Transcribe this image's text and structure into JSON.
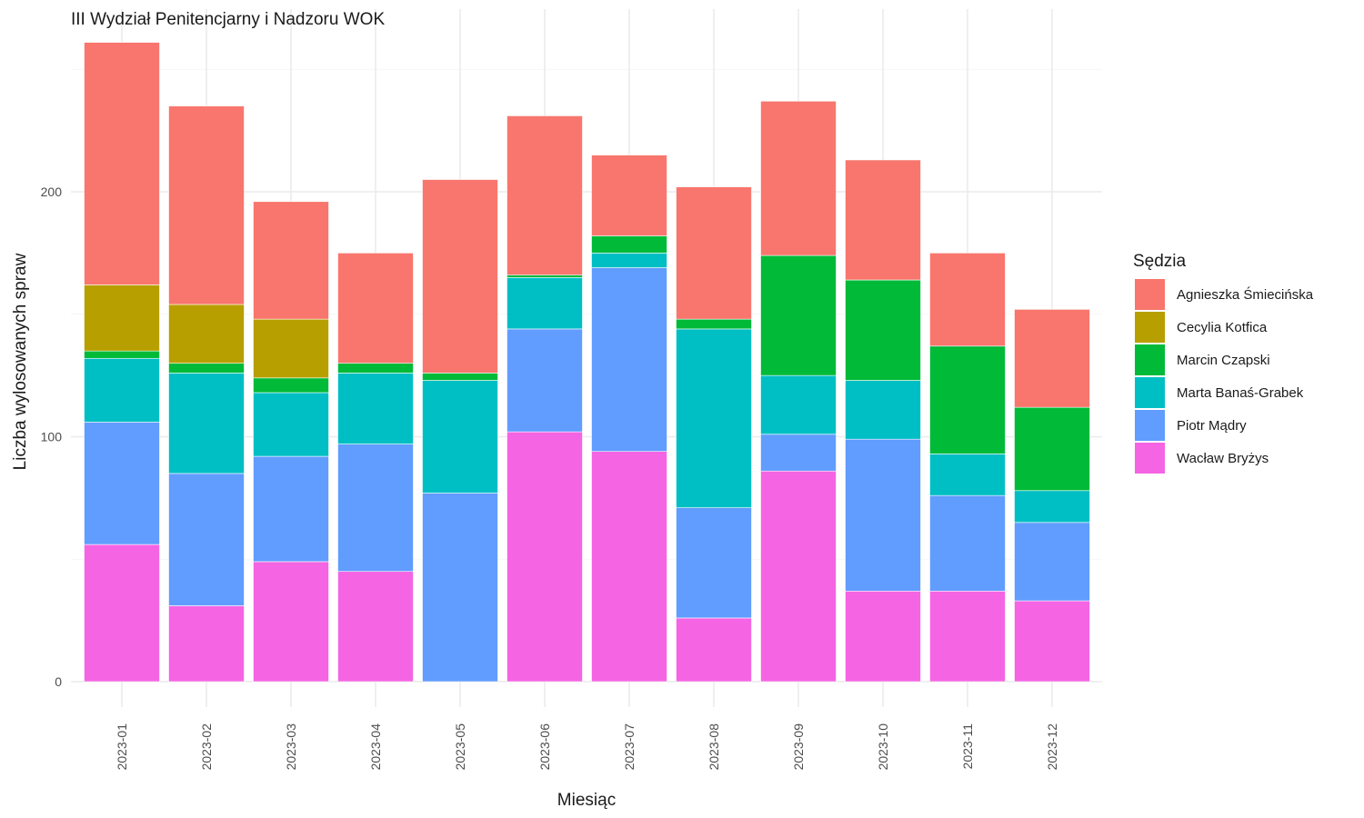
{
  "chart_data": {
    "type": "bar",
    "stacked": true,
    "title": "III Wydział Penitencjarny i Nadzoru WOK",
    "xlabel": "Miesiąc",
    "ylabel": "Liczba wylosowanych spraw",
    "ylim": [
      0,
      262
    ],
    "yticks": [
      0,
      100,
      200
    ],
    "grid": true,
    "legend_title": "Sędzia",
    "legend_position": "right",
    "categories": [
      "2023-01",
      "2023-02",
      "2023-03",
      "2023-04",
      "2023-05",
      "2023-06",
      "2023-07",
      "2023-08",
      "2023-09",
      "2023-10",
      "2023-11",
      "2023-12"
    ],
    "series": [
      {
        "name": "Wacław Bryżys",
        "color": "#F564E3",
        "values": [
          56,
          31,
          49,
          45,
          0,
          102,
          94,
          26,
          86,
          37,
          37,
          33
        ]
      },
      {
        "name": "Piotr Mądry",
        "color": "#619CFF",
        "values": [
          50,
          54,
          43,
          52,
          77,
          42,
          75,
          45,
          15,
          62,
          39,
          32
        ]
      },
      {
        "name": "Marta Banaś-Grabek",
        "color": "#00BFC4",
        "values": [
          26,
          41,
          26,
          29,
          46,
          21,
          6,
          73,
          24,
          24,
          17,
          13
        ]
      },
      {
        "name": "Marcin Czapski",
        "color": "#00BA38",
        "values": [
          3,
          4,
          6,
          4,
          3,
          1,
          7,
          4,
          49,
          41,
          44,
          34
        ]
      },
      {
        "name": "Cecylia Kotfica",
        "color": "#B79F00",
        "values": [
          27,
          24,
          24,
          0,
          0,
          0,
          0,
          0,
          0,
          0,
          0,
          0
        ]
      },
      {
        "name": "Agnieszka Śmiecińska",
        "color": "#F8766D",
        "values": [
          99,
          81,
          48,
          45,
          79,
          65,
          33,
          54,
          63,
          49,
          38,
          40
        ]
      }
    ],
    "legend_order": [
      "Agnieszka Śmiecińska",
      "Cecylia Kotfica",
      "Marcin Czapski",
      "Marta Banaś-Grabek",
      "Piotr Mądry",
      "Wacław Bryżys"
    ]
  }
}
